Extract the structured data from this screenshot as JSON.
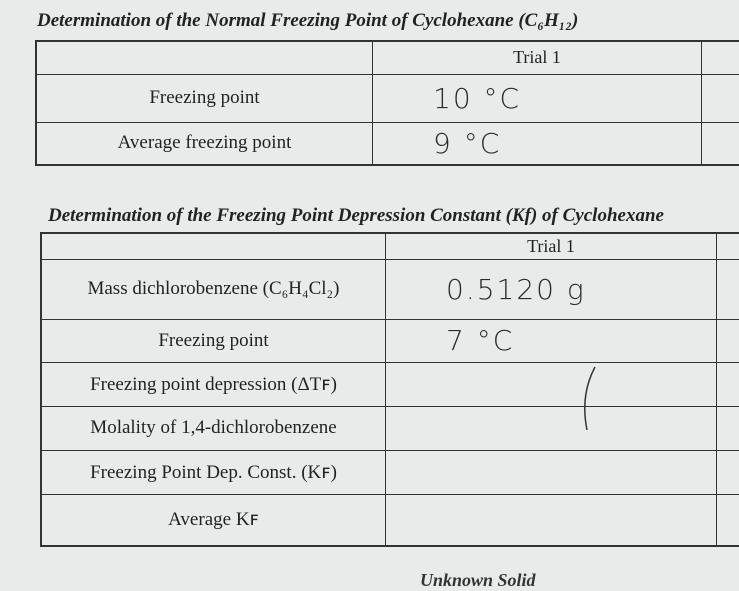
{
  "section1": {
    "title": "Determination of the Normal Freezing Point of Cyclohexane (C₆H₁₂)",
    "header": "Trial 1",
    "rows": [
      {
        "label": "Freezing point",
        "value": "10 °C"
      },
      {
        "label": "Average freezing point",
        "value": "9 °C"
      }
    ]
  },
  "section2": {
    "title": "Determination of the Freezing Point Depression Constant (Kf) of Cyclohexane",
    "header": "Trial 1",
    "rows": [
      {
        "label": "Mass dichlorobenzene (C₆H₄Cl₂)",
        "value": "0.5120 g"
      },
      {
        "label": "Freezing point",
        "value": "7 °C"
      },
      {
        "label": "Freezing point depression (ΔTꜰ)"
      },
      {
        "label": "Molality of 1,4-dichlorobenzene"
      },
      {
        "label": "Freezing Point Dep. Const. (Kꜰ)"
      },
      {
        "label": "Average Kꜰ"
      }
    ]
  },
  "footer_heading": "Unknown Solid"
}
